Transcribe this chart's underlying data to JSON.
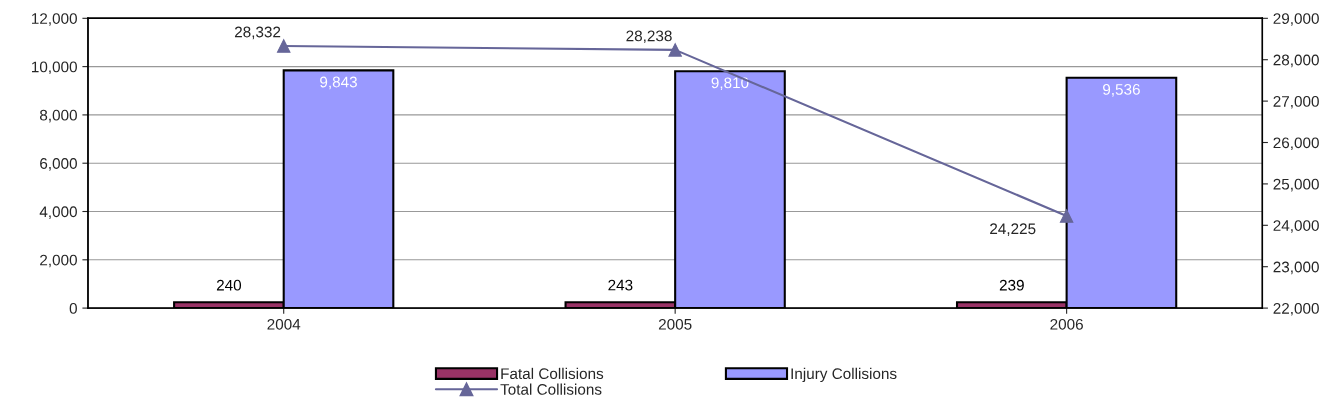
{
  "chart_data": {
    "type": "bar",
    "categories": [
      "2004",
      "2005",
      "2006"
    ],
    "series": [
      {
        "name": "Fatal Collisions",
        "color": "#993366",
        "values": [
          240,
          243,
          239
        ],
        "value_labels": [
          "240",
          "243",
          "239"
        ]
      },
      {
        "name": "Injury Collisions",
        "color": "#9999ff",
        "values": [
          9843,
          9810,
          9536
        ],
        "value_labels": [
          "9,843",
          "9,810",
          "9,536"
        ]
      },
      {
        "name": "Total Collisions",
        "type": "line",
        "axis": "y2",
        "color": "#666699",
        "marker": "triangle",
        "values": [
          28332,
          28238,
          24225
        ],
        "value_labels": [
          "28,332",
          "28,238",
          "24,225"
        ]
      }
    ],
    "ylim": [
      0,
      12000
    ],
    "yticks": [
      {
        "value": 0,
        "label": "0"
      },
      {
        "value": 2000,
        "label": "2,000"
      },
      {
        "value": 4000,
        "label": "4,000"
      },
      {
        "value": 6000,
        "label": "6,000"
      },
      {
        "value": 8000,
        "label": "8,000"
      },
      {
        "value": 10000,
        "label": "10,000"
      },
      {
        "value": 12000,
        "label": "12,000"
      }
    ],
    "y2lim": [
      22000,
      29000
    ],
    "y2ticks": [
      {
        "value": 22000,
        "label": "22,000"
      },
      {
        "value": 23000,
        "label": "23,000"
      },
      {
        "value": 24000,
        "label": "24,000"
      },
      {
        "value": 25000,
        "label": "25,000"
      },
      {
        "value": 26000,
        "label": "26,000"
      },
      {
        "value": 27000,
        "label": "27,000"
      },
      {
        "value": 28000,
        "label": "28,000"
      },
      {
        "value": 29000,
        "label": "29,000"
      }
    ],
    "grid": "y",
    "legend": "bottom"
  }
}
